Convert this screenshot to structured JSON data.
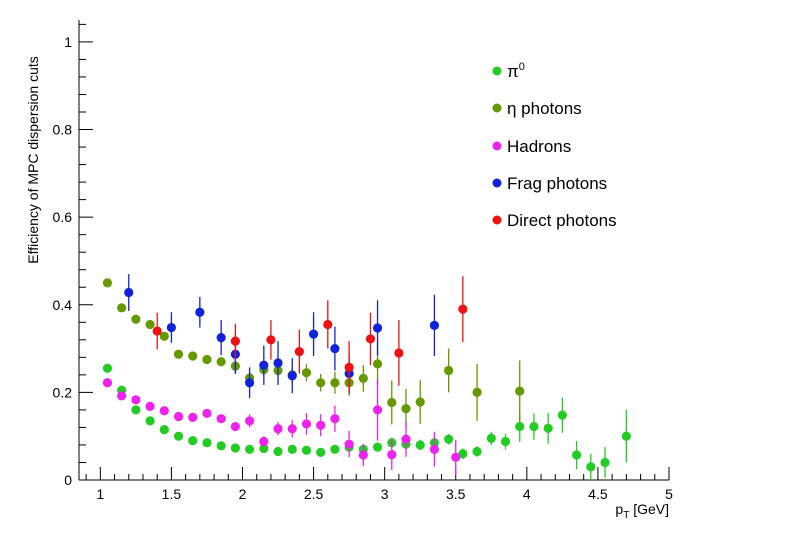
{
  "chart_data": {
    "type": "scatter",
    "title": "",
    "xlabel": "p",
    "xlabel_sub": "T",
    "xlabel_suffix": " [GeV]",
    "ylabel": "Efficiency of MPC dispersion cuts",
    "xlim": [
      0.85,
      5.0
    ],
    "ylim": [
      0,
      1.05
    ],
    "x_ticks": [
      1,
      1.5,
      2,
      2.5,
      3,
      3.5,
      4,
      4.5,
      5
    ],
    "x_tick_labels": [
      "1",
      "1.5",
      "2",
      "2.5",
      "3",
      "3.5",
      "4",
      "4.5",
      "5"
    ],
    "y_ticks": [
      0,
      0.2,
      0.4,
      0.6,
      0.8,
      1
    ],
    "y_tick_labels": [
      "0",
      "0.2",
      "0.4",
      "0.6",
      "0.8",
      "1"
    ],
    "legend_position": "top-right",
    "series": [
      {
        "name": "π0",
        "legend_base": "π",
        "legend_sup": "0",
        "color": "#22cc22",
        "points": [
          {
            "x": 1.05,
            "y": 0.255,
            "err": 0
          },
          {
            "x": 1.15,
            "y": 0.205,
            "err": 0
          },
          {
            "x": 1.25,
            "y": 0.16,
            "err": 0
          },
          {
            "x": 1.35,
            "y": 0.135,
            "err": 0
          },
          {
            "x": 1.45,
            "y": 0.115,
            "err": 0
          },
          {
            "x": 1.55,
            "y": 0.1,
            "err": 0
          },
          {
            "x": 1.65,
            "y": 0.09,
            "err": 0
          },
          {
            "x": 1.75,
            "y": 0.085,
            "err": 0
          },
          {
            "x": 1.85,
            "y": 0.078,
            "err": 0
          },
          {
            "x": 1.95,
            "y": 0.073,
            "err": 0
          },
          {
            "x": 2.05,
            "y": 0.07,
            "err": 0
          },
          {
            "x": 2.15,
            "y": 0.072,
            "err": 0
          },
          {
            "x": 2.25,
            "y": 0.065,
            "err": 0
          },
          {
            "x": 2.35,
            "y": 0.07,
            "err": 0
          },
          {
            "x": 2.45,
            "y": 0.068,
            "err": 0
          },
          {
            "x": 2.55,
            "y": 0.063,
            "err": 0
          },
          {
            "x": 2.65,
            "y": 0.07,
            "err": 0
          },
          {
            "x": 2.75,
            "y": 0.075,
            "err": 0
          },
          {
            "x": 2.85,
            "y": 0.07,
            "err": 0
          },
          {
            "x": 2.95,
            "y": 0.075,
            "err": 0
          },
          {
            "x": 3.05,
            "y": 0.085,
            "err": 0.012
          },
          {
            "x": 3.15,
            "y": 0.082,
            "err": 0.012
          },
          {
            "x": 3.25,
            "y": 0.08,
            "err": 0.012
          },
          {
            "x": 3.35,
            "y": 0.085,
            "err": 0.012
          },
          {
            "x": 3.45,
            "y": 0.093,
            "err": 0.012
          },
          {
            "x": 3.55,
            "y": 0.06,
            "err": 0.012
          },
          {
            "x": 3.65,
            "y": 0.065,
            "err": 0.012
          },
          {
            "x": 3.75,
            "y": 0.095,
            "err": 0.015
          },
          {
            "x": 3.85,
            "y": 0.088,
            "err": 0.018
          },
          {
            "x": 3.95,
            "y": 0.122,
            "err": 0.035
          },
          {
            "x": 4.05,
            "y": 0.122,
            "err": 0.03
          },
          {
            "x": 4.15,
            "y": 0.118,
            "err": 0.035
          },
          {
            "x": 4.25,
            "y": 0.148,
            "err": 0.04
          },
          {
            "x": 4.35,
            "y": 0.057,
            "err": 0.032
          },
          {
            "x": 4.45,
            "y": 0.03,
            "err": 0.03
          },
          {
            "x": 4.55,
            "y": 0.04,
            "err": 0.035
          },
          {
            "x": 4.7,
            "y": 0.1,
            "err": 0.06
          }
        ]
      },
      {
        "name": "η photons",
        "color": "#669900",
        "points": [
          {
            "x": 1.05,
            "y": 0.45,
            "err": 0
          },
          {
            "x": 1.15,
            "y": 0.393,
            "err": 0
          },
          {
            "x": 1.25,
            "y": 0.367,
            "err": 0
          },
          {
            "x": 1.35,
            "y": 0.355,
            "err": 0
          },
          {
            "x": 1.45,
            "y": 0.328,
            "err": 0
          },
          {
            "x": 1.55,
            "y": 0.287,
            "err": 0
          },
          {
            "x": 1.65,
            "y": 0.283,
            "err": 0
          },
          {
            "x": 1.75,
            "y": 0.275,
            "err": 0
          },
          {
            "x": 1.85,
            "y": 0.27,
            "err": 0
          },
          {
            "x": 1.95,
            "y": 0.26,
            "err": 0.015
          },
          {
            "x": 2.05,
            "y": 0.233,
            "err": 0.015
          },
          {
            "x": 2.15,
            "y": 0.252,
            "err": 0.015
          },
          {
            "x": 2.25,
            "y": 0.25,
            "err": 0.015
          },
          {
            "x": 2.35,
            "y": 0.24,
            "err": 0.02
          },
          {
            "x": 2.45,
            "y": 0.245,
            "err": 0.02
          },
          {
            "x": 2.55,
            "y": 0.222,
            "err": 0.02
          },
          {
            "x": 2.65,
            "y": 0.222,
            "err": 0.025
          },
          {
            "x": 2.75,
            "y": 0.222,
            "err": 0.03
          },
          {
            "x": 2.85,
            "y": 0.232,
            "err": 0.03
          },
          {
            "x": 2.95,
            "y": 0.265,
            "err": 0.05
          },
          {
            "x": 3.05,
            "y": 0.177,
            "err": 0.05
          },
          {
            "x": 3.15,
            "y": 0.163,
            "err": 0.045
          },
          {
            "x": 3.25,
            "y": 0.178,
            "err": 0.05
          },
          {
            "x": 3.45,
            "y": 0.25,
            "err": 0.05
          },
          {
            "x": 3.65,
            "y": 0.2,
            "err": 0.065
          },
          {
            "x": 3.95,
            "y": 0.203,
            "err": 0.07
          }
        ]
      },
      {
        "name": "Hadrons",
        "color": "#ee22ee",
        "points": [
          {
            "x": 1.05,
            "y": 0.222,
            "err": 0
          },
          {
            "x": 1.15,
            "y": 0.192,
            "err": 0
          },
          {
            "x": 1.25,
            "y": 0.183,
            "err": 0
          },
          {
            "x": 1.35,
            "y": 0.168,
            "err": 0
          },
          {
            "x": 1.45,
            "y": 0.158,
            "err": 0
          },
          {
            "x": 1.55,
            "y": 0.145,
            "err": 0
          },
          {
            "x": 1.65,
            "y": 0.143,
            "err": 0
          },
          {
            "x": 1.75,
            "y": 0.152,
            "err": 0
          },
          {
            "x": 1.85,
            "y": 0.14,
            "err": 0
          },
          {
            "x": 1.95,
            "y": 0.122,
            "err": 0.01
          },
          {
            "x": 2.05,
            "y": 0.135,
            "err": 0.015
          },
          {
            "x": 2.15,
            "y": 0.088,
            "err": 0.012
          },
          {
            "x": 2.25,
            "y": 0.117,
            "err": 0.015
          },
          {
            "x": 2.35,
            "y": 0.117,
            "err": 0.02
          },
          {
            "x": 2.45,
            "y": 0.128,
            "err": 0.025
          },
          {
            "x": 2.55,
            "y": 0.125,
            "err": 0.025
          },
          {
            "x": 2.65,
            "y": 0.14,
            "err": 0.03
          },
          {
            "x": 2.75,
            "y": 0.082,
            "err": 0.03
          },
          {
            "x": 2.85,
            "y": 0.057,
            "err": 0.025
          },
          {
            "x": 2.95,
            "y": 0.16,
            "err": 0.07
          },
          {
            "x": 3.05,
            "y": 0.058,
            "err": 0.035
          },
          {
            "x": 3.15,
            "y": 0.093,
            "err": 0.04
          },
          {
            "x": 3.35,
            "y": 0.07,
            "err": 0.04
          },
          {
            "x": 3.5,
            "y": 0.052,
            "err": 0.04
          }
        ]
      },
      {
        "name": "Frag photons",
        "color": "#1122dd",
        "points": [
          {
            "x": 1.2,
            "y": 0.428,
            "err": 0.042
          },
          {
            "x": 1.5,
            "y": 0.348,
            "err": 0.035
          },
          {
            "x": 1.7,
            "y": 0.383,
            "err": 0.035
          },
          {
            "x": 1.85,
            "y": 0.325,
            "err": 0.04
          },
          {
            "x": 1.95,
            "y": 0.287,
            "err": 0.045
          },
          {
            "x": 2.05,
            "y": 0.222,
            "err": 0.035
          },
          {
            "x": 2.15,
            "y": 0.262,
            "err": 0.045
          },
          {
            "x": 2.25,
            "y": 0.267,
            "err": 0.05
          },
          {
            "x": 2.35,
            "y": 0.238,
            "err": 0.04
          },
          {
            "x": 2.5,
            "y": 0.333,
            "err": 0.05
          },
          {
            "x": 2.65,
            "y": 0.3,
            "err": 0.05
          },
          {
            "x": 2.75,
            "y": 0.243,
            "err": 0.045
          },
          {
            "x": 2.95,
            "y": 0.347,
            "err": 0.063
          },
          {
            "x": 3.35,
            "y": 0.353,
            "err": 0.07
          }
        ]
      },
      {
        "name": "Direct photons",
        "color": "#ee1111",
        "points": [
          {
            "x": 1.4,
            "y": 0.34,
            "err": 0.042
          },
          {
            "x": 1.95,
            "y": 0.317,
            "err": 0.04
          },
          {
            "x": 2.2,
            "y": 0.32,
            "err": 0.045
          },
          {
            "x": 2.4,
            "y": 0.293,
            "err": 0.05
          },
          {
            "x": 2.6,
            "y": 0.355,
            "err": 0.055
          },
          {
            "x": 2.75,
            "y": 0.257,
            "err": 0.06
          },
          {
            "x": 2.9,
            "y": 0.322,
            "err": 0.06
          },
          {
            "x": 3.1,
            "y": 0.29,
            "err": 0.075
          },
          {
            "x": 3.55,
            "y": 0.39,
            "err": 0.075
          }
        ]
      }
    ]
  }
}
